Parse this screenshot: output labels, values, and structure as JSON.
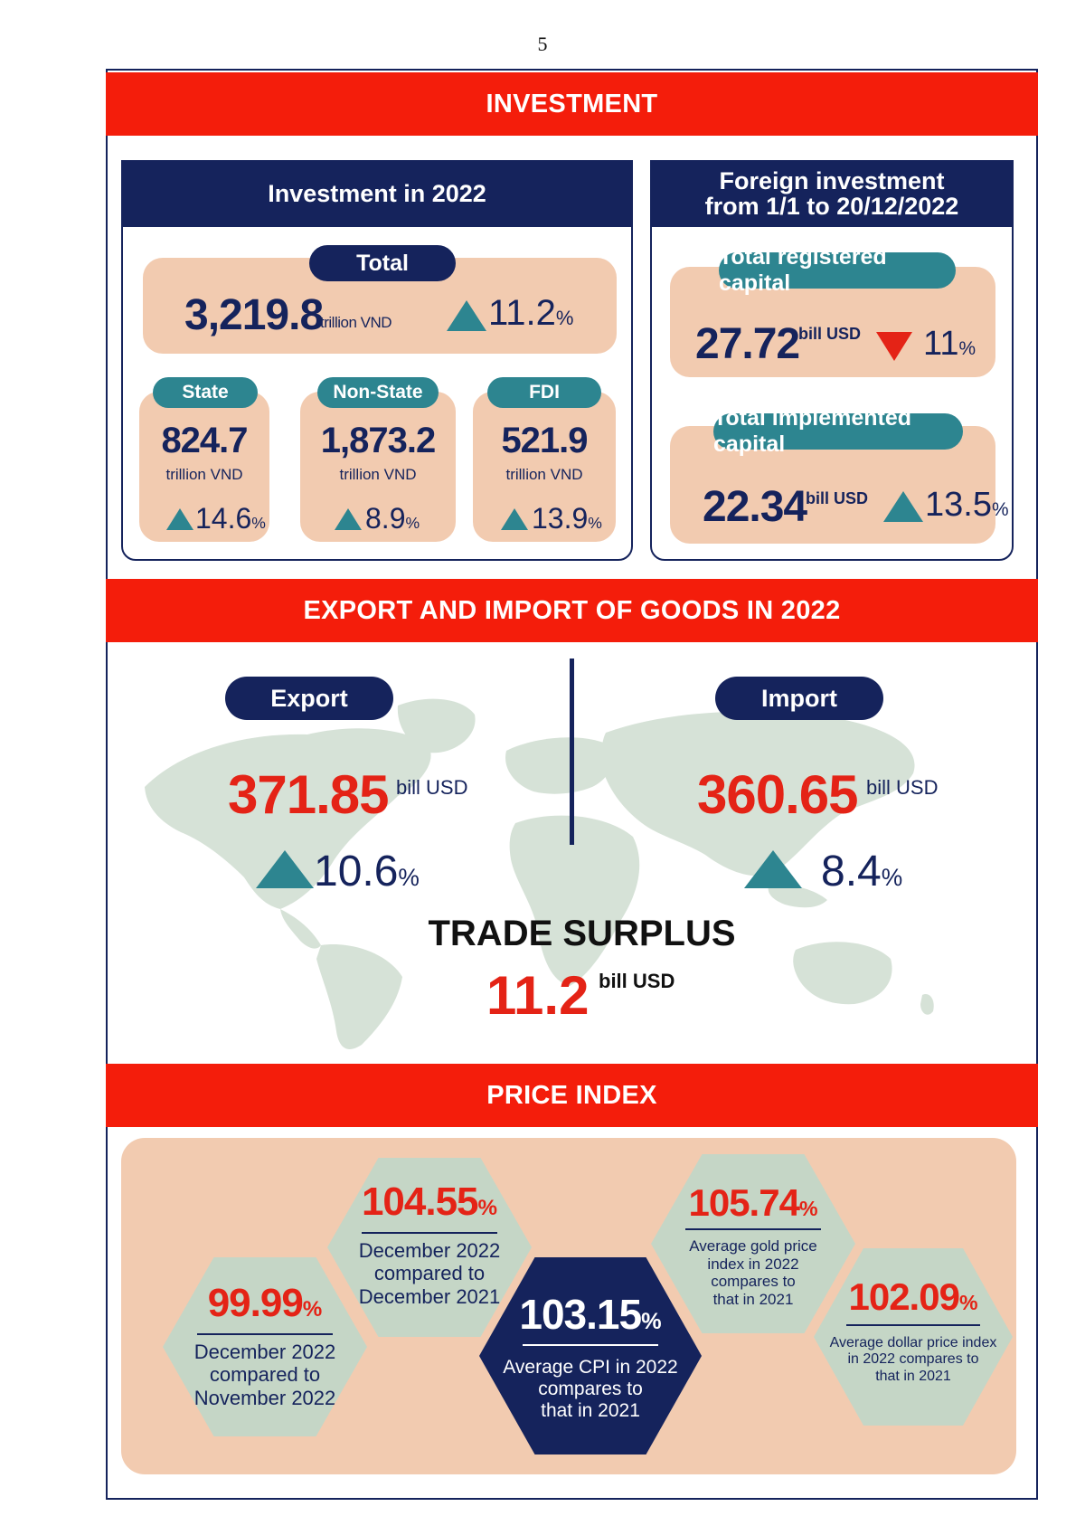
{
  "page_number": "5",
  "investment": {
    "banner": "INVESTMENT",
    "domestic": {
      "title": "Investment in 2022",
      "total": {
        "label": "Total",
        "value": "3,219.8",
        "unit": "trillion VND",
        "change": "11.2",
        "pct": "%"
      },
      "state": {
        "label": "State",
        "value": "824.7",
        "unit": "trillion VND",
        "change": "14.6",
        "pct": "%"
      },
      "non_state": {
        "label": "Non-State",
        "value": "1,873.2",
        "unit": "trillion VND",
        "change": "8.9",
        "pct": "%"
      },
      "fdi": {
        "label": "FDI",
        "value": "521.9",
        "unit": "trillion VND",
        "change": "13.9",
        "pct": "%"
      }
    },
    "foreign": {
      "title_line1": "Foreign investment",
      "title_line2": "from 1/1 to 20/12/2022",
      "registered": {
        "label": "Total registered capital",
        "value": "27.72",
        "unit": "bill USD",
        "change": "11",
        "pct": "%",
        "direction": "down"
      },
      "implemented": {
        "label": "Total implemented capital",
        "value": "22.34",
        "unit": "bill USD",
        "change": "13.5",
        "pct": "%",
        "direction": "up"
      }
    }
  },
  "trade": {
    "banner": "EXPORT AND IMPORT OF GOODS IN 2022",
    "export": {
      "label": "Export",
      "value": "371.85",
      "unit": "bill USD",
      "change": "10.6",
      "pct": "%"
    },
    "import": {
      "label": "Import",
      "value": "360.65",
      "unit": "bill USD",
      "change": "8.4",
      "pct": "%"
    },
    "surplus": {
      "label": "TRADE SURPLUS",
      "value": "11.2",
      "unit": "bill USD"
    }
  },
  "price_index": {
    "banner": "PRICE INDEX",
    "items": [
      {
        "value": "99.99",
        "pct": "%",
        "line1": "December 2022",
        "line2": "compared to",
        "line3": "November 2022"
      },
      {
        "value": "104.55",
        "pct": "%",
        "line1": "December 2022",
        "line2": "compared to",
        "line3": "December 2021"
      },
      {
        "value": "103.15",
        "pct": "%",
        "line1": "Average CPI in 2022",
        "line2": "compares to",
        "line3": "that in 2021"
      },
      {
        "value": "105.74",
        "pct": "%",
        "line1": "Average gold price",
        "line2": "index in 2022",
        "line3": "compares to",
        "line4": "that in 2021"
      },
      {
        "value": "102.09",
        "pct": "%",
        "line1": "Average dollar price index",
        "line2": "in 2022 compares to",
        "line3": "that in 2021"
      }
    ]
  },
  "colors": {
    "red": "#f41d0b",
    "navy": "#15235c",
    "teal": "#2d8590",
    "peach": "#f2cbb0",
    "map": "#d6e2d7",
    "hex_green": "#c5d6c6"
  }
}
